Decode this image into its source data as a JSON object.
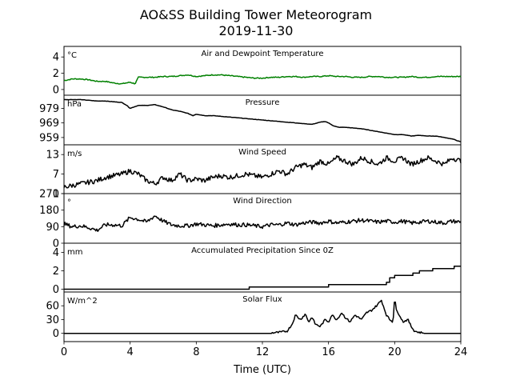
{
  "figure": {
    "title": "AO&SS Building Tower Meteorogram",
    "subtitle": "2019-11-30",
    "xlabel": "Time (UTC)"
  },
  "chart_data": [
    {
      "type": "line",
      "title": "Air and Dewpoint Temperature",
      "unit_label": "°C",
      "ylim": [
        -0.7,
        5.3
      ],
      "yticks": [
        0,
        2,
        4
      ],
      "xlim": [
        0,
        24
      ],
      "color": "#008000",
      "series": [
        {
          "x": [
            0,
            0.5,
            1,
            1.5,
            2,
            2.5,
            3,
            3.5,
            4,
            4.3,
            4.5,
            5,
            5.5,
            6,
            6.5,
            7,
            7.5,
            8,
            8.5,
            9,
            9.5,
            10,
            10.5,
            11,
            11.5,
            12,
            12.5,
            13,
            13.5,
            14,
            14.5,
            15,
            15.5,
            16,
            16.5,
            17,
            17.5,
            18,
            18.5,
            19,
            19.5,
            20,
            20.5,
            21,
            21.5,
            22,
            22.5,
            23,
            23.5,
            24
          ],
          "values": [
            1.1,
            1.3,
            1.3,
            1.2,
            1.0,
            1.0,
            0.8,
            0.7,
            0.9,
            0.7,
            1.5,
            1.5,
            1.5,
            1.6,
            1.6,
            1.7,
            1.8,
            1.6,
            1.7,
            1.8,
            1.8,
            1.7,
            1.6,
            1.5,
            1.4,
            1.4,
            1.5,
            1.5,
            1.6,
            1.6,
            1.5,
            1.6,
            1.6,
            1.7,
            1.6,
            1.6,
            1.5,
            1.5,
            1.6,
            1.6,
            1.5,
            1.5,
            1.5,
            1.6,
            1.5,
            1.5,
            1.6,
            1.6,
            1.6,
            1.6
          ]
        }
      ]
    },
    {
      "type": "line",
      "title": "Pressure",
      "unit_label": "hPa",
      "ylim": [
        954,
        988
      ],
      "yticks": [
        959,
        969,
        979
      ],
      "xlim": [
        0,
        24
      ],
      "color": "#000000",
      "series": [
        {
          "x": [
            0,
            0.5,
            1,
            1.5,
            2,
            2.5,
            3,
            3.5,
            3.8,
            4,
            4.5,
            5,
            5.5,
            6,
            6.5,
            7,
            7.5,
            7.8,
            8,
            8.5,
            9,
            9.5,
            10,
            10.5,
            11,
            11.5,
            12,
            12.5,
            13,
            13.5,
            14,
            14.5,
            15,
            15.5,
            15.8,
            16,
            16.3,
            16.6,
            17,
            17.5,
            18,
            18.5,
            19,
            19.5,
            20,
            20.5,
            21,
            21.5,
            22,
            22.5,
            23,
            23.5,
            24
          ],
          "values": [
            985,
            985,
            985,
            984.5,
            984,
            984,
            983.5,
            983,
            981,
            979,
            981,
            981,
            981.5,
            980,
            978,
            977,
            975.5,
            974,
            975,
            974,
            974,
            973.5,
            973,
            972.5,
            972,
            971.5,
            971,
            970.5,
            970,
            969.5,
            969,
            968.5,
            968,
            969.5,
            970,
            969,
            967,
            966,
            966,
            965.5,
            965,
            964,
            963,
            962,
            961,
            961,
            960,
            960.5,
            960,
            960,
            959,
            958,
            956
          ]
        }
      ]
    },
    {
      "type": "line",
      "title": "Wind Speed",
      "unit_label": "m/s",
      "ylim": [
        1,
        16
      ],
      "yticks": [
        1,
        7,
        13
      ],
      "xlim": [
        0,
        24
      ],
      "color": "#000000",
      "series": [
        {
          "x": [
            0,
            0.5,
            1,
            1.5,
            2,
            2.5,
            3,
            3.5,
            4,
            4.5,
            5,
            5.5,
            6,
            6.5,
            7,
            7.5,
            8,
            8.5,
            9,
            9.5,
            10,
            10.5,
            11,
            11.5,
            12,
            12.5,
            13,
            13.5,
            14,
            14.5,
            15,
            15.5,
            16,
            16.5,
            17,
            17.5,
            18,
            18.5,
            19,
            19.5,
            20,
            20.5,
            21,
            21.5,
            22,
            22.5,
            23,
            23.5,
            24
          ],
          "values": [
            3,
            3.5,
            4,
            4.5,
            5,
            6,
            6.5,
            7,
            8,
            7,
            5,
            4,
            6,
            5,
            7,
            5,
            5.5,
            5,
            6,
            6.5,
            6,
            6.5,
            7,
            6.5,
            6,
            7,
            8,
            7,
            9,
            10,
            9,
            11,
            10,
            12,
            11,
            10,
            12,
            11,
            10,
            12,
            11,
            12,
            10,
            11,
            12,
            11,
            10,
            12,
            11
          ]
        }
      ]
    },
    {
      "type": "line",
      "title": "Wind Direction",
      "unit_label": "°",
      "ylim": [
        0,
        270
      ],
      "yticks": [
        0,
        90,
        180,
        270
      ],
      "xlim": [
        0,
        24
      ],
      "color": "#000000",
      "series": [
        {
          "x": [
            0,
            0.5,
            1,
            1.5,
            2,
            2.5,
            3,
            3.5,
            4,
            4.5,
            5,
            5.5,
            6,
            6.5,
            7,
            7.5,
            8,
            8.5,
            9,
            9.5,
            10,
            10.5,
            11,
            11.5,
            12,
            12.5,
            13,
            13.5,
            14,
            14.5,
            15,
            15.5,
            16,
            16.5,
            17,
            17.5,
            18,
            18.5,
            19,
            19.5,
            20,
            20.5,
            21,
            21.5,
            22,
            22.5,
            23,
            23.5,
            24
          ],
          "values": [
            105,
            90,
            95,
            85,
            70,
            100,
            100,
            95,
            140,
            130,
            115,
            150,
            120,
            100,
            95,
            95,
            105,
            100,
            95,
            100,
            105,
            100,
            100,
            95,
            90,
            100,
            100,
            110,
            100,
            110,
            115,
            110,
            120,
            110,
            115,
            120,
            125,
            120,
            115,
            120,
            115,
            120,
            110,
            115,
            120,
            115,
            110,
            120,
            115
          ]
        }
      ]
    },
    {
      "type": "line",
      "title": "Accumulated Precipitation Since 0Z",
      "unit_label": "mm",
      "ylim": [
        -0.3,
        5.0
      ],
      "yticks": [
        0,
        2,
        4
      ],
      "xlim": [
        0,
        24
      ],
      "color": "#000000",
      "series": [
        {
          "x": [
            0,
            11.2,
            11.2,
            16,
            16,
            19.5,
            19.5,
            19.7,
            19.7,
            20,
            20,
            21.1,
            21.1,
            21.5,
            21.5,
            22.3,
            22.3,
            23.6,
            23.6,
            24
          ],
          "values": [
            0,
            0,
            0.25,
            0.25,
            0.5,
            0.5,
            0.75,
            0.75,
            1.25,
            1.25,
            1.5,
            1.5,
            1.75,
            1.75,
            2.0,
            2.0,
            2.25,
            2.25,
            2.5,
            2.5
          ]
        }
      ]
    },
    {
      "type": "line",
      "title": "Solar Flux",
      "unit_label": "W/m^2",
      "ylim": [
        -18,
        90
      ],
      "yticks": [
        0,
        30,
        60
      ],
      "xlim": [
        0,
        24
      ],
      "color": "#000000",
      "series": [
        {
          "x": [
            0,
            4,
            8,
            12,
            13,
            13.5,
            13.8,
            14,
            14.3,
            14.6,
            14.8,
            15,
            15.2,
            15.5,
            15.8,
            16,
            16.2,
            16.5,
            16.8,
            17,
            17.3,
            17.6,
            18,
            18.3,
            18.6,
            18.9,
            19.2,
            19.5,
            19.7,
            19.9,
            20,
            20.1,
            20.3,
            20.5,
            20.8,
            21,
            21.2,
            21.5,
            22,
            23,
            24
          ],
          "values": [
            0,
            0,
            0,
            0,
            2,
            5,
            20,
            40,
            30,
            42,
            25,
            35,
            20,
            15,
            30,
            25,
            40,
            30,
            45,
            35,
            25,
            40,
            30,
            45,
            50,
            60,
            72,
            40,
            30,
            25,
            80,
            50,
            40,
            25,
            30,
            15,
            5,
            2,
            0,
            0,
            0
          ]
        }
      ]
    }
  ],
  "x_axis": {
    "ticks": [
      0,
      4,
      8,
      12,
      16,
      20,
      24
    ]
  }
}
